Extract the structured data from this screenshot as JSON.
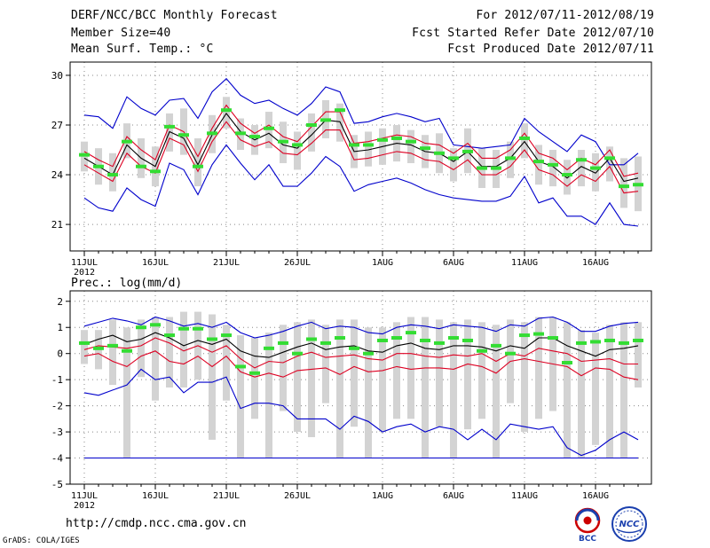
{
  "header": {
    "title": "DERF/NCC/BCC Monthly Forecast",
    "member_size": "Member Size=40",
    "variable": "Mean Surf. Temp.: °C",
    "period": "For 2012/07/11-2012/08/19",
    "started": "Fcst Started Refer Date 2012/07/10",
    "produced": "Fcst Produced Date 2012/07/11"
  },
  "footer": {
    "url": "http://cmdp.ncc.cma.gov.cn",
    "credit": "GrADS: COLA/IGES",
    "logos": [
      "BCC",
      "NCC"
    ]
  },
  "colors": {
    "box": "#d3d3d3",
    "median": "#33dd33",
    "mean": "#000000",
    "spread": "#dd0022",
    "envelope": "#0000cc"
  },
  "chart_data": [
    {
      "type": "box-plume",
      "title": "Mean Surf. Temp.: °C",
      "x_tick_labels": [
        "11JUL",
        "16JUL",
        "21JUL",
        "26JUL",
        "1AUG",
        "6AUG",
        "11AUG",
        "16AUG"
      ],
      "x_tick_days": [
        1,
        6,
        11,
        16,
        22,
        27,
        32,
        37
      ],
      "year_label": "2012",
      "ylim": [
        19.4,
        30.8
      ],
      "yticks": [
        21,
        24,
        27,
        30
      ],
      "days": 40,
      "series": [
        {
          "name": "ensemble mean",
          "values": [
            25.0,
            24.5,
            24.0,
            25.8,
            25.0,
            24.5,
            26.6,
            26.2,
            24.6,
            26.4,
            27.7,
            26.6,
            26.1,
            26.5,
            25.8,
            25.6,
            26.4,
            27.3,
            27.2,
            25.4,
            25.5,
            25.7,
            25.9,
            25.8,
            25.4,
            25.3,
            24.8,
            25.4,
            24.5,
            24.5,
            25.0,
            26.0,
            24.8,
            24.5,
            23.8,
            24.5,
            24.1,
            25.0,
            23.6,
            23.8
          ]
        },
        {
          "name": "upper spread",
          "values": [
            25.4,
            24.9,
            24.5,
            26.3,
            25.5,
            24.9,
            27.0,
            26.6,
            25.1,
            26.8,
            28.2,
            27.1,
            26.5,
            27.0,
            26.3,
            26.0,
            26.9,
            27.8,
            27.8,
            25.9,
            26.0,
            26.2,
            26.4,
            26.3,
            25.9,
            25.8,
            25.3,
            25.9,
            25.0,
            25.0,
            25.5,
            26.5,
            25.3,
            25.0,
            24.3,
            25.0,
            24.6,
            25.5,
            23.9,
            24.1
          ]
        },
        {
          "name": "lower spread",
          "values": [
            24.6,
            24.1,
            23.6,
            25.3,
            24.5,
            24.1,
            26.2,
            25.8,
            24.2,
            26.0,
            27.2,
            26.1,
            25.7,
            26.0,
            25.3,
            25.2,
            25.9,
            26.7,
            26.7,
            24.9,
            25.0,
            25.2,
            25.4,
            25.3,
            24.9,
            24.8,
            24.3,
            24.9,
            24.0,
            24.0,
            24.5,
            25.5,
            24.3,
            24.0,
            23.3,
            24.0,
            23.6,
            24.5,
            22.9,
            23.0
          ]
        },
        {
          "name": "ensemble max",
          "values": [
            27.6,
            27.5,
            26.8,
            28.7,
            28.0,
            27.6,
            28.5,
            28.6,
            27.4,
            29.0,
            29.8,
            28.8,
            28.3,
            28.5,
            28.0,
            27.6,
            28.3,
            29.3,
            29.0,
            27.1,
            27.2,
            27.5,
            27.7,
            27.5,
            27.2,
            27.4,
            25.8,
            25.7,
            25.6,
            25.7,
            25.8,
            27.4,
            26.6,
            26.0,
            25.4,
            26.4,
            26.0,
            24.6,
            24.6,
            25.3
          ]
        },
        {
          "name": "ensemble min",
          "values": [
            22.6,
            22.0,
            21.8,
            23.2,
            22.5,
            22.1,
            24.7,
            24.3,
            22.8,
            24.6,
            25.8,
            24.7,
            23.7,
            24.6,
            23.3,
            23.3,
            24.1,
            25.1,
            24.5,
            23.0,
            23.4,
            23.6,
            23.8,
            23.5,
            23.1,
            22.8,
            22.6,
            22.5,
            22.4,
            22.4,
            22.7,
            23.9,
            22.3,
            22.6,
            21.5,
            21.5,
            21.0,
            22.3,
            21.0,
            20.9
          ]
        },
        {
          "name": "ensemble median",
          "values": [
            25.2,
            24.5,
            24.0,
            26.0,
            24.5,
            24.2,
            26.9,
            26.4,
            24.5,
            26.5,
            27.9,
            26.5,
            26.3,
            26.8,
            26.0,
            25.8,
            27.0,
            27.3,
            27.9,
            25.8,
            25.8,
            26.1,
            26.2,
            26.0,
            25.6,
            25.3,
            25.0,
            25.4,
            24.4,
            24.4,
            25.0,
            26.2,
            24.8,
            24.6,
            24.0,
            24.9,
            24.4,
            25.0,
            23.3,
            23.4
          ]
        },
        {
          "name": "box upper",
          "values": [
            26.0,
            25.6,
            25.3,
            27.1,
            26.2,
            25.7,
            27.7,
            28.0,
            26.2,
            27.6,
            28.7,
            27.4,
            27.0,
            27.8,
            27.2,
            26.6,
            27.7,
            28.5,
            28.3,
            26.4,
            26.6,
            26.8,
            27.0,
            26.7,
            26.4,
            26.5,
            25.6,
            26.8,
            25.6,
            25.5,
            26.0,
            27.1,
            25.8,
            25.5,
            24.9,
            25.5,
            25.3,
            25.7,
            25.0,
            25.1
          ]
        },
        {
          "name": "box lower",
          "values": [
            24.2,
            23.4,
            23.0,
            25.0,
            23.8,
            23.3,
            25.4,
            25.2,
            23.3,
            25.3,
            26.8,
            25.5,
            25.2,
            25.6,
            24.7,
            24.3,
            25.4,
            26.2,
            26.0,
            24.4,
            24.5,
            24.6,
            24.8,
            24.7,
            24.4,
            24.1,
            23.6,
            24.1,
            23.2,
            23.2,
            23.8,
            25.0,
            23.4,
            23.3,
            22.8,
            23.3,
            23.0,
            23.6,
            22.0,
            21.8
          ]
        }
      ]
    },
    {
      "type": "box-plume",
      "title": "Prec.: log(mm/d)",
      "x_tick_labels": [
        "11JUL",
        "16JUL",
        "21JUL",
        "26JUL",
        "1AUG",
        "6AUG",
        "11AUG",
        "16AUG"
      ],
      "x_tick_days": [
        1,
        6,
        11,
        16,
        22,
        27,
        32,
        37
      ],
      "year_label": "2012",
      "ylim": [
        -5,
        2.4
      ],
      "yticks": [
        -5,
        -4,
        -3,
        -2,
        -1,
        0,
        1,
        2
      ],
      "days": 40,
      "series": [
        {
          "name": "ensemble mean",
          "values": [
            0.35,
            0.55,
            0.7,
            0.45,
            0.55,
            0.8,
            0.6,
            0.3,
            0.5,
            0.35,
            0.55,
            0.1,
            -0.1,
            -0.15,
            0.05,
            0.25,
            0.4,
            0.15,
            0.25,
            0.3,
            0.1,
            0.05,
            0.3,
            0.4,
            0.2,
            0.15,
            0.3,
            0.3,
            0.25,
            0.1,
            0.3,
            0.2,
            0.6,
            0.6,
            0.3,
            0.1,
            -0.1,
            0.15,
            0.2,
            0.3
          ]
        },
        {
          "name": "upper spread",
          "values": [
            0.15,
            0.3,
            0.25,
            0.2,
            0.3,
            0.6,
            0.4,
            0.1,
            0.3,
            0.05,
            0.3,
            -0.2,
            -0.55,
            -0.3,
            -0.35,
            -0.1,
            0.05,
            -0.15,
            -0.1,
            -0.05,
            -0.2,
            -0.25,
            0.0,
            0.0,
            -0.1,
            -0.15,
            -0.05,
            -0.1,
            0.0,
            -0.3,
            0.0,
            -0.1,
            0.2,
            0.1,
            0.0,
            -0.3,
            -0.25,
            -0.2,
            -0.4,
            -0.4
          ]
        },
        {
          "name": "lower spread",
          "values": [
            -0.1,
            0.0,
            -0.3,
            -0.5,
            -0.1,
            0.1,
            -0.3,
            -0.4,
            -0.1,
            -0.5,
            -0.1,
            -0.7,
            -0.9,
            -0.75,
            -0.9,
            -0.65,
            -0.6,
            -0.55,
            -0.8,
            -0.5,
            -0.7,
            -0.65,
            -0.5,
            -0.6,
            -0.55,
            -0.55,
            -0.6,
            -0.4,
            -0.5,
            -0.75,
            -0.3,
            -0.2,
            -0.3,
            -0.4,
            -0.5,
            -0.85,
            -0.55,
            -0.6,
            -0.9,
            -1.0
          ]
        },
        {
          "name": "ensemble max",
          "values": [
            1.05,
            1.2,
            1.35,
            1.25,
            1.1,
            1.4,
            1.25,
            1.05,
            1.15,
            1.0,
            1.2,
            0.8,
            0.6,
            0.7,
            0.85,
            1.05,
            1.2,
            0.95,
            1.05,
            1.0,
            0.8,
            0.75,
            1.0,
            1.1,
            1.05,
            0.95,
            1.1,
            1.05,
            1.0,
            0.85,
            1.1,
            1.05,
            1.35,
            1.4,
            1.2,
            0.85,
            0.85,
            1.05,
            1.15,
            1.2
          ]
        },
        {
          "name": "ensemble min",
          "values": [
            -1.5,
            -1.6,
            -1.4,
            -1.2,
            -0.6,
            -1.0,
            -0.9,
            -1.5,
            -1.1,
            -1.1,
            -0.9,
            -2.1,
            -1.9,
            -1.9,
            -2.0,
            -2.5,
            -2.5,
            -2.5,
            -2.9,
            -2.4,
            -2.6,
            -3.0,
            -2.8,
            -2.7,
            -3.0,
            -2.8,
            -2.9,
            -3.3,
            -2.9,
            -3.3,
            -2.7,
            -2.8,
            -2.9,
            -2.8,
            -3.6,
            -3.9,
            -3.7,
            -3.3,
            -3.0,
            -3.3
          ]
        },
        {
          "name": "ensemble median",
          "values": [
            0.4,
            0.2,
            0.3,
            0.1,
            1.0,
            1.1,
            0.7,
            0.95,
            0.95,
            0.55,
            0.7,
            -0.5,
            -0.75,
            0.2,
            0.4,
            0.0,
            0.55,
            0.4,
            0.6,
            0.2,
            0.0,
            0.5,
            0.6,
            0.8,
            0.5,
            0.4,
            0.6,
            0.5,
            0.1,
            0.3,
            0.0,
            0.7,
            0.75,
            0.6,
            -0.35,
            0.4,
            0.45,
            0.5,
            0.4,
            0.5
          ]
        },
        {
          "name": "box upper",
          "values": [
            0.9,
            0.9,
            1.3,
            1.0,
            1.3,
            1.4,
            1.4,
            1.6,
            1.6,
            1.5,
            1.1,
            0.7,
            0.6,
            0.8,
            1.1,
            1.2,
            1.3,
            1.1,
            1.3,
            1.3,
            1.0,
            1.0,
            1.2,
            1.4,
            1.4,
            1.3,
            1.2,
            1.3,
            1.2,
            1.1,
            1.3,
            1.2,
            1.4,
            1.4,
            1.2,
            0.9,
            0.8,
            1.1,
            1.2,
            1.2
          ]
        },
        {
          "name": "box lower",
          "values": [
            -0.4,
            -0.6,
            -1.2,
            -4.0,
            -0.9,
            -1.8,
            -1.3,
            -1.3,
            -1.0,
            -3.3,
            -1.8,
            -4.0,
            -2.5,
            -4.0,
            -2.2,
            -3.0,
            -3.2,
            -1.9,
            -4.0,
            -2.8,
            -4.0,
            -3.0,
            -2.5,
            -2.5,
            -4.0,
            -2.8,
            -4.0,
            -2.9,
            -2.5,
            -4.0,
            -1.9,
            -3.0,
            -2.5,
            -2.2,
            -4.0,
            -4.0,
            -3.5,
            -4.0,
            -4.0,
            -1.3
          ]
        }
      ]
    }
  ]
}
